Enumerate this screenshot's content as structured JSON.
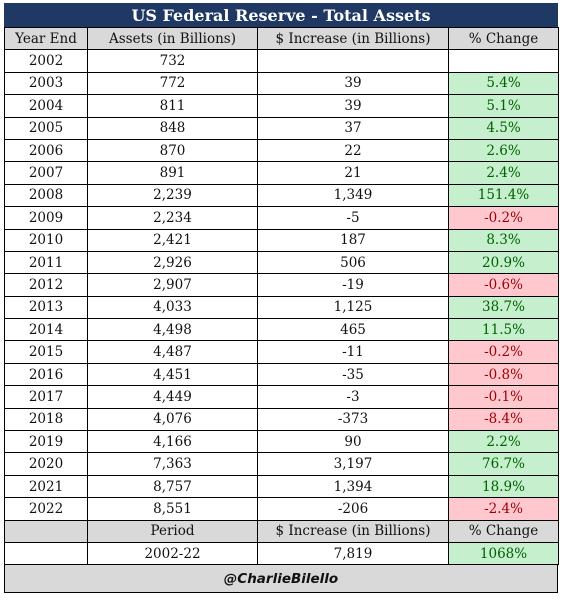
{
  "title": "US Federal Reserve - Total Assets",
  "headers": [
    "Year End",
    "Assets (in Billions)",
    "$ Increase (in Billions)",
    "% Change"
  ],
  "rows": [
    {
      "year": "2002",
      "assets": "732",
      "increase": "",
      "change": "",
      "dir": "none"
    },
    {
      "year": "2003",
      "assets": "772",
      "increase": "39",
      "change": "5.4%",
      "dir": "pos"
    },
    {
      "year": "2004",
      "assets": "811",
      "increase": "39",
      "change": "5.1%",
      "dir": "pos"
    },
    {
      "year": "2005",
      "assets": "848",
      "increase": "37",
      "change": "4.5%",
      "dir": "pos"
    },
    {
      "year": "2006",
      "assets": "870",
      "increase": "22",
      "change": "2.6%",
      "dir": "pos"
    },
    {
      "year": "2007",
      "assets": "891",
      "increase": "21",
      "change": "2.4%",
      "dir": "pos"
    },
    {
      "year": "2008",
      "assets": "2,239",
      "increase": "1,349",
      "change": "151.4%",
      "dir": "pos"
    },
    {
      "year": "2009",
      "assets": "2,234",
      "increase": "-5",
      "change": "-0.2%",
      "dir": "neg"
    },
    {
      "year": "2010",
      "assets": "2,421",
      "increase": "187",
      "change": "8.3%",
      "dir": "pos"
    },
    {
      "year": "2011",
      "assets": "2,926",
      "increase": "506",
      "change": "20.9%",
      "dir": "pos"
    },
    {
      "year": "2012",
      "assets": "2,907",
      "increase": "-19",
      "change": "-0.6%",
      "dir": "neg"
    },
    {
      "year": "2013",
      "assets": "4,033",
      "increase": "1,125",
      "change": "38.7%",
      "dir": "pos"
    },
    {
      "year": "2014",
      "assets": "4,498",
      "increase": "465",
      "change": "11.5%",
      "dir": "pos"
    },
    {
      "year": "2015",
      "assets": "4,487",
      "increase": "-11",
      "change": "-0.2%",
      "dir": "neg"
    },
    {
      "year": "2016",
      "assets": "4,451",
      "increase": "-35",
      "change": "-0.8%",
      "dir": "neg"
    },
    {
      "year": "2017",
      "assets": "4,449",
      "increase": "-3",
      "change": "-0.1%",
      "dir": "neg"
    },
    {
      "year": "2018",
      "assets": "4,076",
      "increase": "-373",
      "change": "-8.4%",
      "dir": "neg"
    },
    {
      "year": "2019",
      "assets": "4,166",
      "increase": "90",
      "change": "2.2%",
      "dir": "pos"
    },
    {
      "year": "2020",
      "assets": "7,363",
      "increase": "3,197",
      "change": "76.7%",
      "dir": "pos"
    },
    {
      "year": "2021",
      "assets": "8,757",
      "increase": "1,394",
      "change": "18.9%",
      "dir": "pos"
    },
    {
      "year": "2022",
      "assets": "8,551",
      "increase": "-206",
      "change": "-2.4%",
      "dir": "neg"
    }
  ],
  "summary": {
    "period_label": "Period",
    "increase_label": "$ Increase (in Billions)",
    "change_label": "% Change",
    "period_value": "2002-22",
    "increase_value": "7,819",
    "change_value": "1068%"
  },
  "footer": "@CharlieBilello",
  "colors": {
    "title_bg": "#1f3864",
    "header_bg": "#d9d9d9",
    "positive_bg": "#c6efce",
    "negative_bg": "#ffc7ce"
  }
}
